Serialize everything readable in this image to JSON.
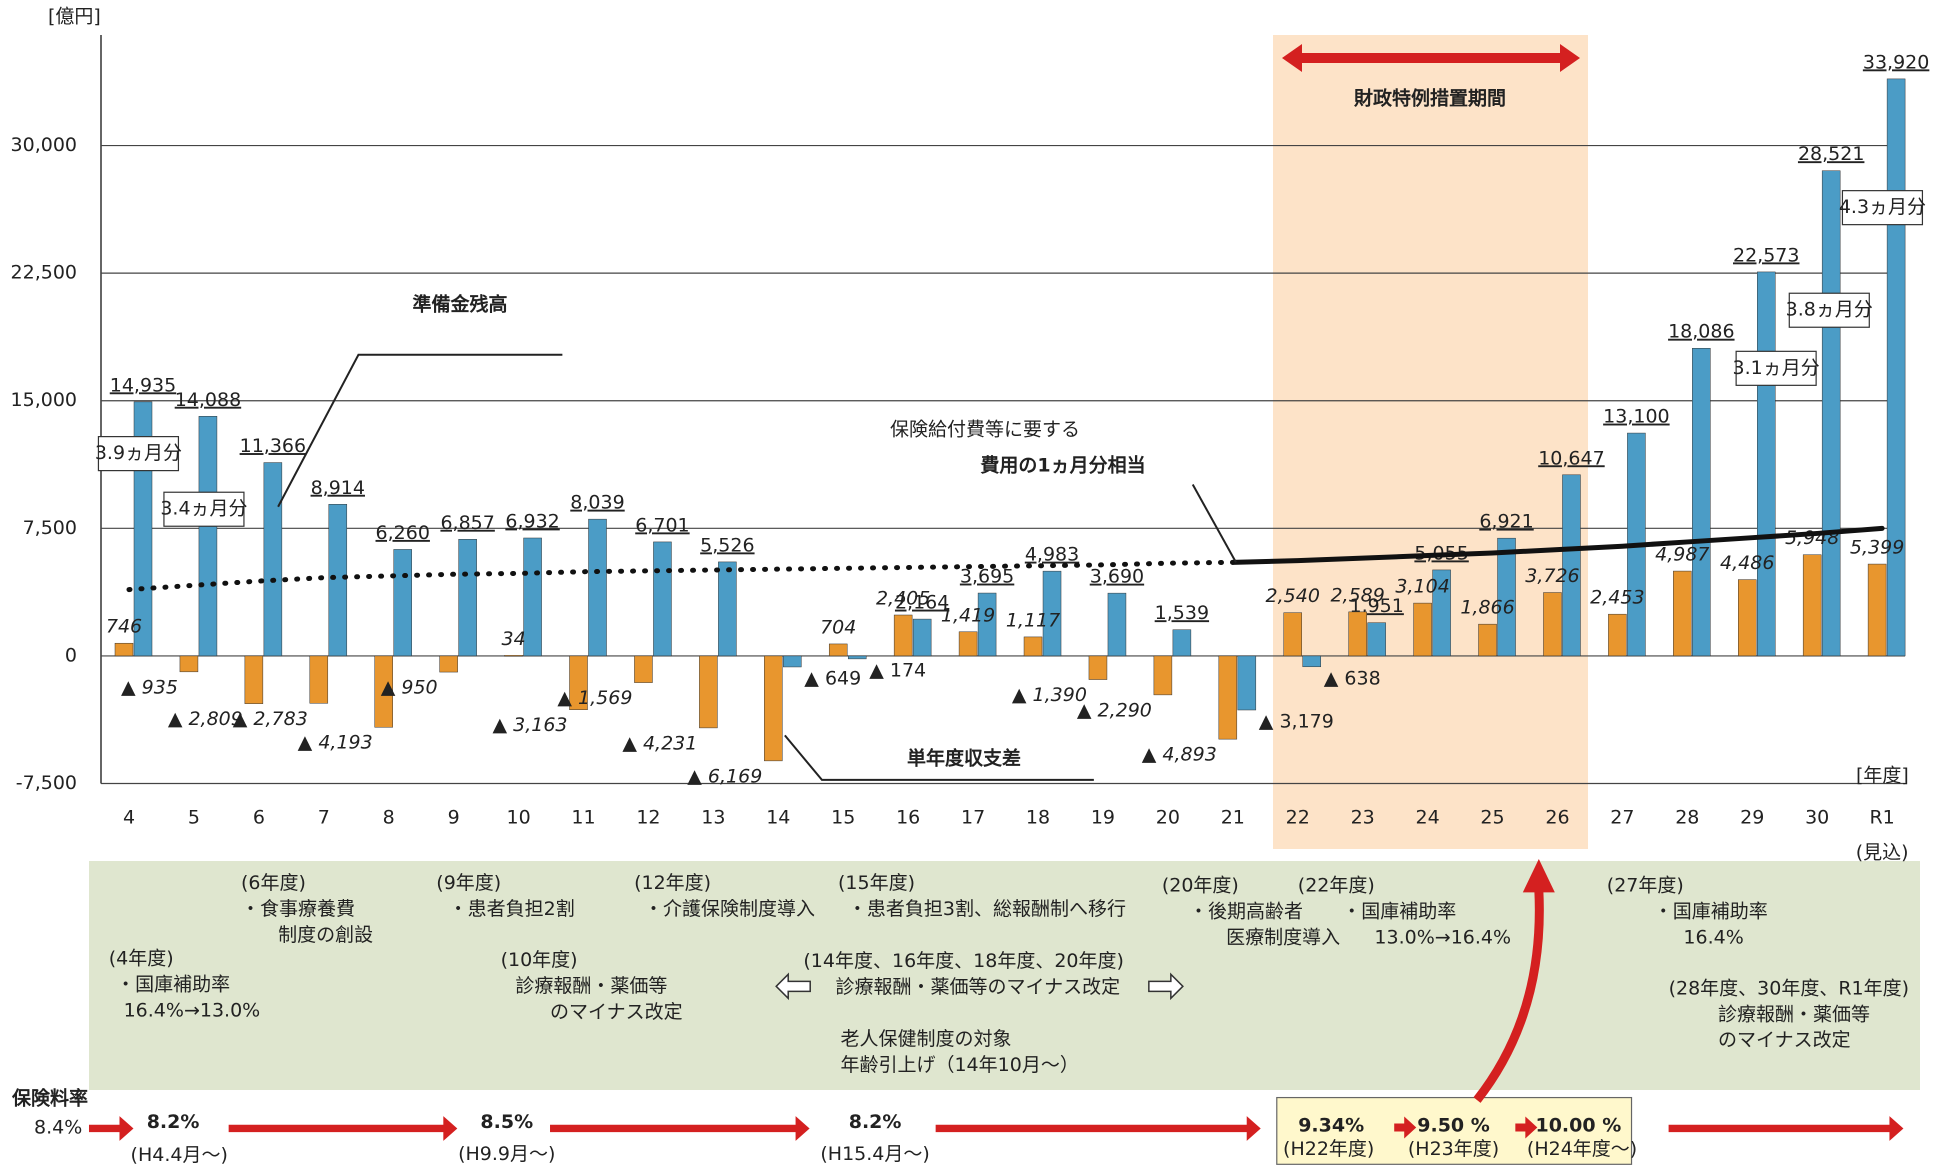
{
  "chart_data": {
    "type": "bar",
    "y_unit": "[億円]",
    "x_unit": "[年度]",
    "categories": [
      "4",
      "5",
      "6",
      "7",
      "8",
      "9",
      "10",
      "11",
      "12",
      "13",
      "14",
      "15",
      "16",
      "17",
      "18",
      "19",
      "20",
      "21",
      "22",
      "23",
      "24",
      "25",
      "26",
      "27",
      "28",
      "29",
      "30",
      "R1"
    ],
    "category_note": "(見込)",
    "ylim": [
      -7500,
      36500
    ],
    "yticks": [
      {
        "value": -7500,
        "label": "-7,500"
      },
      0,
      {
        "value": 7500,
        "label": "7,500"
      },
      {
        "value": 15000,
        "label": "15,000"
      },
      {
        "value": 22500,
        "label": "22,500"
      },
      {
        "value": 30000,
        "label": "30,000"
      }
    ],
    "grid": true,
    "series": [
      {
        "name": "準備金残高",
        "color": "#4b9cc6",
        "values": [
          14935,
          14088,
          11366,
          8914,
          6260,
          6857,
          6932,
          8039,
          6701,
          5526,
          -649,
          -174,
          2164,
          3695,
          4983,
          3690,
          1539,
          -3179,
          -638,
          1951,
          5055,
          6921,
          10647,
          13100,
          18086,
          22573,
          28521,
          33920
        ],
        "value_labels": [
          "14,935",
          "14,088",
          "11,366",
          "8,914",
          "6,260",
          "6,857",
          "6,932",
          "8,039",
          "6,701",
          "5,526",
          "▲ 649",
          "▲ 174",
          "2,164",
          "3,695",
          "4,983",
          "3,690",
          "1,539",
          "▲ 3,179",
          "▲ 638",
          "1,951",
          "5,055",
          "6,921",
          "10,647",
          "13,100",
          "18,086",
          "22,573",
          "28,521",
          "33,920"
        ]
      },
      {
        "name": "単年度収支差",
        "color": "#e8962e",
        "values": [
          746,
          -935,
          -2809,
          -2783,
          -4193,
          -950,
          34,
          -3163,
          -1569,
          -4231,
          -6169,
          704,
          2405,
          1419,
          1117,
          -1390,
          -2290,
          -4893,
          2540,
          2589,
          3104,
          1866,
          3726,
          2453,
          4987,
          4486,
          5948,
          5399
        ],
        "value_labels": [
          "746",
          "▲ 935",
          "▲ 2,809",
          "▲ 2,783",
          "▲ 4,193",
          "▲ 950",
          "34",
          "▲ 3,163",
          "▲ 1,569",
          "▲ 4,231",
          "▲ 6,169",
          "704",
          "2,405",
          "1,419",
          "1,117",
          "▲ 1,390",
          "▲ 2,290",
          "▲ 4,893",
          "2,540",
          "2,589",
          "3,104",
          "1,866",
          "3,726",
          "2,453",
          "4,987",
          "4,486",
          "5,948",
          "5,399"
        ]
      },
      {
        "type": "line",
        "color": "#111111",
        "dotted": true,
        "values": [
          3900,
          4150,
          4400,
          4600,
          4700,
          4800,
          4850,
          4950,
          5000,
          5050,
          5100,
          5150,
          5200,
          5250,
          5300,
          5350,
          5450,
          5500,
          null,
          null,
          null,
          null,
          null,
          null,
          null,
          null,
          null,
          null
        ]
      },
      {
        "type": "line",
        "color": "#111111",
        "dotted": false,
        "values": [
          null,
          null,
          null,
          null,
          null,
          null,
          null,
          null,
          null,
          null,
          null,
          null,
          null,
          null,
          null,
          null,
          null,
          5500,
          5600,
          5750,
          5900,
          6050,
          6250,
          6450,
          6700,
          6950,
          7200,
          7500
        ]
      }
    ],
    "month_line_label": [
      "保険給付費等に要する",
      "費用の1ヵ月分相当"
    ],
    "month_notes": [
      "3.9ヵ月分",
      "3.4ヵ月分",
      "3.1ヵ月分",
      "3.8ヵ月分",
      "4.3ヵ月分"
    ],
    "period_label": "財政特例措置期間"
  },
  "notes": [
    {
      "lines": [
        "(4年度)",
        "・国庫補助率",
        "16.4%→13.0%"
      ]
    },
    {
      "lines": [
        "(6年度)",
        "・食事療養費",
        "制度の創設"
      ]
    },
    {
      "lines": [
        "(9年度)",
        "・患者負担2割"
      ]
    },
    {
      "lines": [
        "(10年度)",
        "診療報酬・薬価等",
        "のマイナス改定"
      ]
    },
    {
      "lines": [
        "(12年度)",
        "・介護保険制度導入"
      ]
    },
    {
      "lines": [
        "(15年度)",
        "・患者負担3割、総報酬制へ移行"
      ]
    },
    {
      "lines": [
        "(14年度、16年度、18年度、20年度)",
        "診療報酬・薬価等のマイナス改定"
      ]
    },
    {
      "lines": [
        "老人保健制度の対象",
        "年齢引上げ（14年10月～）"
      ]
    },
    {
      "lines": [
        "(20年度)",
        "・後期高齢者",
        "医療制度導入"
      ]
    },
    {
      "lines": [
        "(22年度)",
        "・国庫補助率",
        "13.0%→16.4%"
      ]
    },
    {
      "lines": [
        "(27年度)",
        "・国庫補助率",
        "16.4%"
      ]
    },
    {
      "lines": [
        "(28年度、30年度、R1年度)",
        "診療報酬・薬価等",
        "のマイナス改定"
      ]
    }
  ],
  "rates": {
    "title": "保険料率",
    "start": "8.4%",
    "steps": [
      {
        "rate": "8.2%",
        "from": "(H4.4月～)"
      },
      {
        "rate": "8.5%",
        "from": "(H9.9月～)"
      },
      {
        "rate": "8.2%",
        "from": "(H15.4月～)"
      },
      {
        "rate": "9.34%",
        "from": "(H22年度)"
      },
      {
        "rate": "9.50 %",
        "from": "(H23年度)"
      },
      {
        "rate": "10.00 %",
        "from": "(H24年度～)"
      }
    ]
  }
}
